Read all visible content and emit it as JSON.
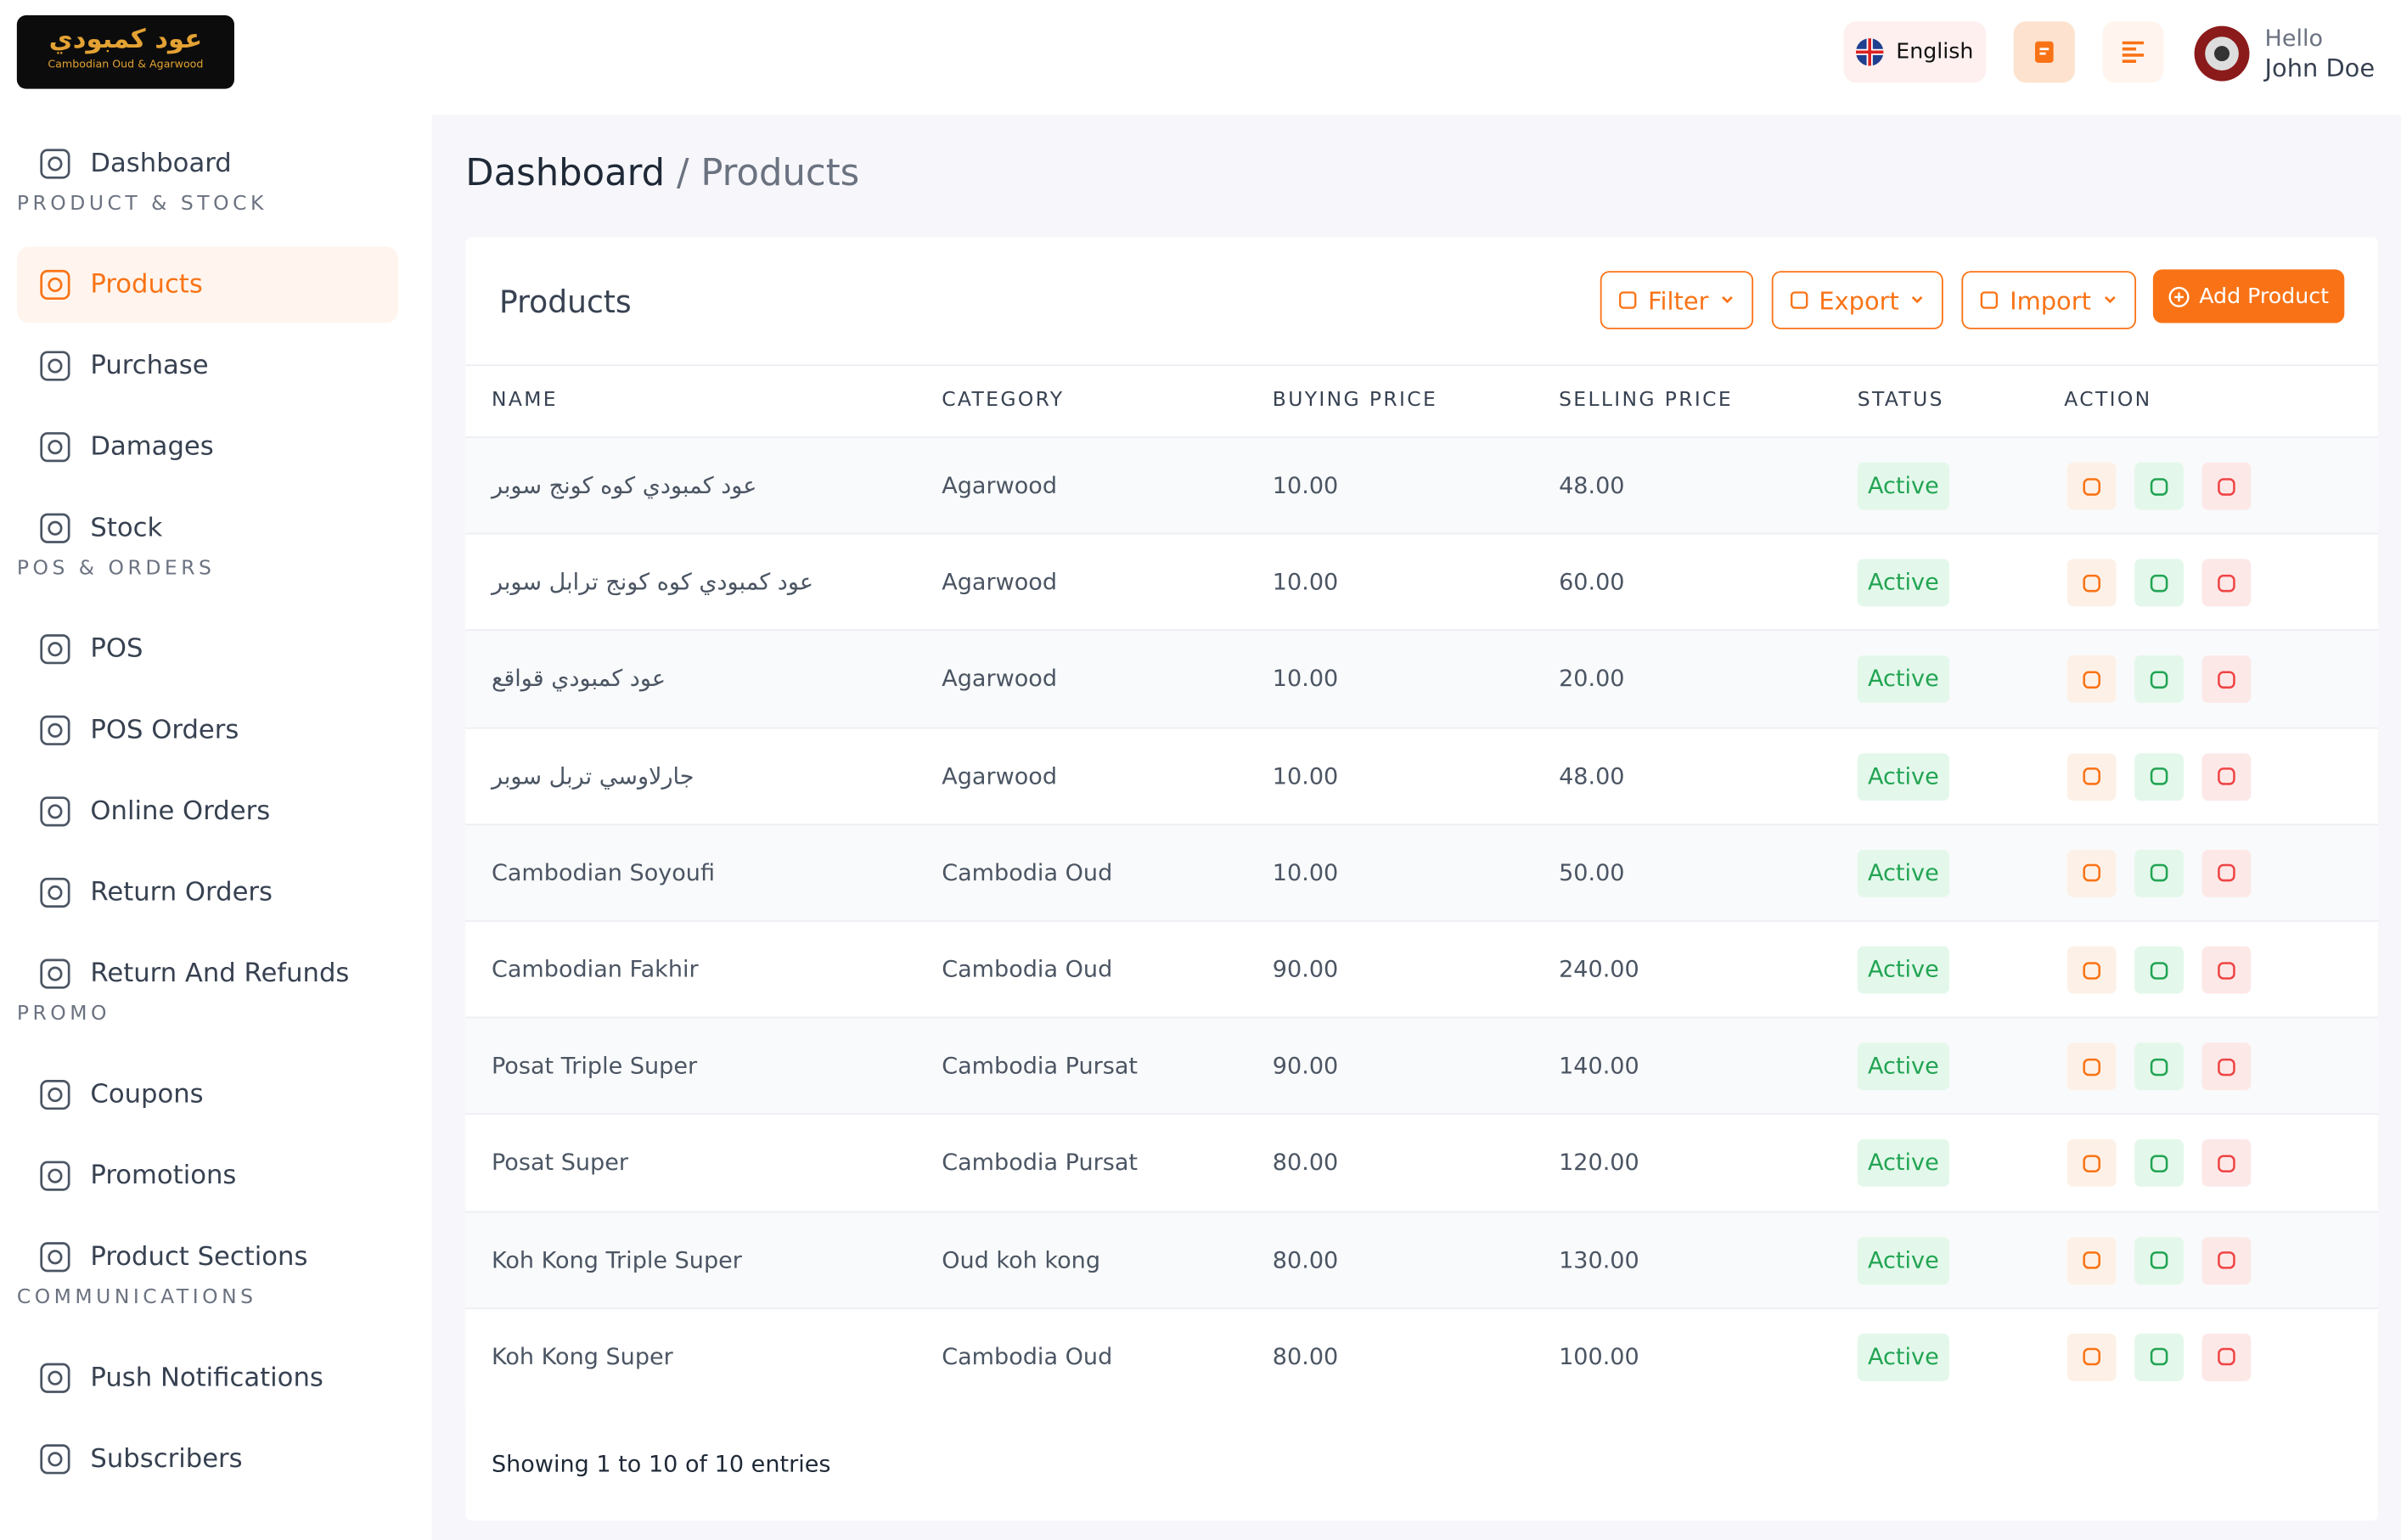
{
  "logo": {
    "title": "عود كمبودي",
    "subtitle": "Cambodian Oud & Agarwood"
  },
  "header": {
    "language": "English",
    "greeting": "Hello",
    "user": "John Doe"
  },
  "sidebar": [
    {
      "item": "Dashboard"
    },
    {
      "heading": "PRODUCT & STOCK"
    },
    {
      "item": "Products",
      "active": true
    },
    {
      "item": "Purchase"
    },
    {
      "item": "Damages"
    },
    {
      "item": "Stock"
    },
    {
      "heading": "POS & ORDERS"
    },
    {
      "item": "POS"
    },
    {
      "item": "POS Orders"
    },
    {
      "item": "Online Orders"
    },
    {
      "item": "Return Orders"
    },
    {
      "item": "Return And Refunds"
    },
    {
      "heading": "PROMO"
    },
    {
      "item": "Coupons"
    },
    {
      "item": "Promotions"
    },
    {
      "item": "Product Sections"
    },
    {
      "heading": "COMMUNICATIONS"
    },
    {
      "item": "Push Notifications"
    },
    {
      "item": "Subscribers"
    }
  ],
  "breadcrumb": {
    "root": "Dashboard",
    "separator": "/",
    "current": "Products"
  },
  "card": {
    "title": "Products",
    "buttons": [
      "Filter",
      "Export",
      "Import"
    ],
    "add": "Add Product"
  },
  "table": {
    "columns": [
      "NAME",
      "CATEGORY",
      "BUYING PRICE",
      "SELLING PRICE",
      "STATUS",
      "ACTION"
    ],
    "rows": [
      [
        "عود كمبودي كوه كونج سوبر",
        "Agarwood",
        "10.00",
        "48.00",
        "Active"
      ],
      [
        "عود كمبودي كوه كونج ترابل سوبر",
        "Agarwood",
        "10.00",
        "60.00",
        "Active"
      ],
      [
        "عود كمبودي قواقع",
        "Agarwood",
        "10.00",
        "20.00",
        "Active"
      ],
      [
        "جارلاوسي تربل سوبر",
        "Agarwood",
        "10.00",
        "48.00",
        "Active"
      ],
      [
        "Cambodian Soyoufi",
        "Cambodia Oud",
        "10.00",
        "50.00",
        "Active"
      ],
      [
        "Cambodian Fakhir",
        "Cambodia Oud",
        "90.00",
        "240.00",
        "Active"
      ],
      [
        "Posat Triple Super",
        "Cambodia Pursat",
        "90.00",
        "140.00",
        "Active"
      ],
      [
        "Posat Super",
        "Cambodia Pursat",
        "80.00",
        "120.00",
        "Active"
      ],
      [
        "Koh Kong Triple Super",
        "Oud koh kong",
        "80.00",
        "130.00",
        "Active"
      ],
      [
        "Koh Kong Super",
        "Cambodia Oud",
        "80.00",
        "100.00",
        "Active"
      ]
    ]
  },
  "footer": "Showing 1 to 10 of 10 entries"
}
